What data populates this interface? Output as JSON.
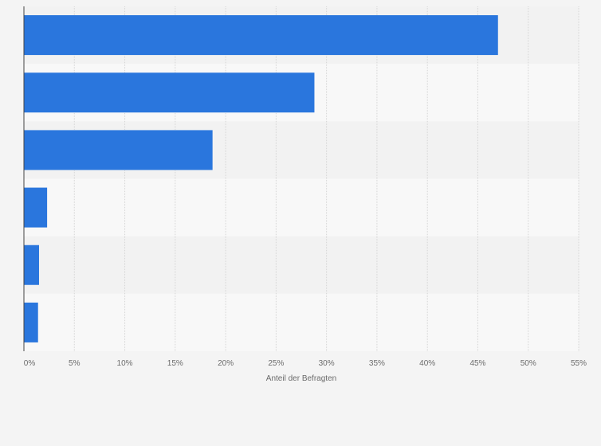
{
  "chart_data": {
    "type": "bar",
    "orientation": "horizontal",
    "categories": [
      "",
      "",
      "",
      "",
      "",
      ""
    ],
    "values": [
      47,
      28.8,
      18.7,
      2.3,
      1.5,
      1.4
    ],
    "xlim": [
      0,
      55
    ],
    "x_ticks": [
      "0%",
      "5%",
      "10%",
      "15%",
      "20%",
      "25%",
      "30%",
      "35%",
      "40%",
      "45%",
      "50%",
      "55%"
    ],
    "xlabel": "Anteil der Befragten",
    "ylabel": "",
    "title": "",
    "grid": true,
    "legend": "none",
    "colors": {
      "bar": "#2a76dd",
      "band_a": "#f2f2f2",
      "band_b": "#f8f8f8",
      "grid": "#d6d6d6",
      "axis": "#444444"
    }
  }
}
